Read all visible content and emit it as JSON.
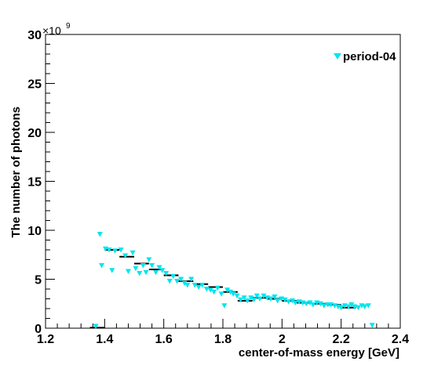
{
  "chart_data": {
    "type": "scatter",
    "xlabel": "center-of-mass energy [GeV]",
    "ylabel": "The number of photons",
    "y_multiplier": "×10",
    "y_multiplier_exponent": "9",
    "xlim": [
      1.2,
      2.4
    ],
    "ylim": [
      0,
      30
    ],
    "x_ticks": [
      "1.2",
      "1.4",
      "1.6",
      "1.8",
      "2",
      "2.2",
      "2.4"
    ],
    "y_ticks": [
      "0",
      "5",
      "10",
      "15",
      "20",
      "25",
      "30"
    ],
    "grid": false,
    "legend_position": "top-right",
    "marker_color": "#00e5ee",
    "line_color": "#000000",
    "series": [
      {
        "name": "period-04",
        "kind": "markers",
        "points": [
          [
            1.37,
            0.2
          ],
          [
            1.384,
            9.6
          ],
          [
            1.39,
            6.4
          ],
          [
            1.403,
            8.1
          ],
          [
            1.415,
            8.0
          ],
          [
            1.425,
            5.9
          ],
          [
            1.435,
            7.9
          ],
          [
            1.455,
            8.0
          ],
          [
            1.47,
            7.4
          ],
          [
            1.48,
            5.8
          ],
          [
            1.495,
            7.7
          ],
          [
            1.505,
            6.1
          ],
          [
            1.518,
            5.6
          ],
          [
            1.53,
            6.4
          ],
          [
            1.54,
            5.7
          ],
          [
            1.55,
            7.0
          ],
          [
            1.56,
            6.4
          ],
          [
            1.573,
            5.7
          ],
          [
            1.585,
            6.2
          ],
          [
            1.595,
            5.9
          ],
          [
            1.608,
            5.6
          ],
          [
            1.62,
            4.8
          ],
          [
            1.632,
            5.3
          ],
          [
            1.645,
            4.8
          ],
          [
            1.658,
            5.0
          ],
          [
            1.67,
            4.6
          ],
          [
            1.68,
            4.4
          ],
          [
            1.693,
            5.0
          ],
          [
            1.705,
            4.4
          ],
          [
            1.718,
            4.2
          ],
          [
            1.73,
            4.4
          ],
          [
            1.745,
            4.0
          ],
          [
            1.758,
            3.9
          ],
          [
            1.77,
            3.7
          ],
          [
            1.782,
            4.1
          ],
          [
            1.795,
            3.5
          ],
          [
            1.805,
            2.3
          ],
          [
            1.815,
            3.9
          ],
          [
            1.825,
            3.7
          ],
          [
            1.835,
            3.5
          ],
          [
            1.848,
            3.3
          ],
          [
            1.86,
            2.9
          ],
          [
            1.872,
            3.1
          ],
          [
            1.883,
            2.8
          ],
          [
            1.895,
            3.1
          ],
          [
            1.905,
            2.9
          ],
          [
            1.915,
            3.3
          ],
          [
            1.925,
            3.0
          ],
          [
            1.938,
            3.3
          ],
          [
            1.95,
            3.1
          ],
          [
            1.962,
            3.0
          ],
          [
            1.975,
            3.2
          ],
          [
            1.985,
            2.8
          ],
          [
            1.998,
            3.0
          ],
          [
            2.01,
            2.9
          ],
          [
            2.022,
            2.7
          ],
          [
            2.035,
            2.8
          ],
          [
            2.045,
            2.6
          ],
          [
            2.058,
            2.7
          ],
          [
            2.07,
            2.6
          ],
          [
            2.082,
            2.5
          ],
          [
            2.095,
            2.6
          ],
          [
            2.105,
            2.4
          ],
          [
            2.118,
            2.6
          ],
          [
            2.13,
            2.5
          ],
          [
            2.142,
            2.3
          ],
          [
            2.155,
            2.4
          ],
          [
            2.165,
            2.4
          ],
          [
            2.178,
            2.3
          ],
          [
            2.19,
            2.2
          ],
          [
            2.2,
            2.1
          ],
          [
            2.212,
            2.3
          ],
          [
            2.225,
            2.2
          ],
          [
            2.235,
            2.4
          ],
          [
            2.245,
            2.2
          ],
          [
            2.258,
            2.1
          ],
          [
            2.27,
            2.3
          ],
          [
            2.28,
            2.2
          ],
          [
            2.292,
            2.3
          ],
          [
            2.305,
            0.3
          ]
        ]
      },
      {
        "kind": "bins",
        "bins": [
          [
            1.35,
            1.4,
            0.05
          ],
          [
            1.4,
            1.45,
            8.0
          ],
          [
            1.45,
            1.5,
            7.3
          ],
          [
            1.5,
            1.55,
            6.6
          ],
          [
            1.55,
            1.6,
            6.0
          ],
          [
            1.6,
            1.65,
            5.4
          ],
          [
            1.65,
            1.7,
            4.8
          ],
          [
            1.7,
            1.75,
            4.5
          ],
          [
            1.75,
            1.8,
            4.2
          ],
          [
            1.8,
            1.85,
            3.7
          ],
          [
            1.85,
            1.9,
            2.8
          ],
          [
            1.9,
            1.95,
            3.1
          ],
          [
            1.95,
            2.0,
            3.0
          ],
          [
            2.0,
            2.05,
            2.8
          ],
          [
            2.05,
            2.1,
            2.6
          ],
          [
            2.1,
            2.15,
            2.5
          ],
          [
            2.15,
            2.2,
            2.4
          ],
          [
            2.2,
            2.25,
            2.1
          ]
        ]
      }
    ]
  }
}
